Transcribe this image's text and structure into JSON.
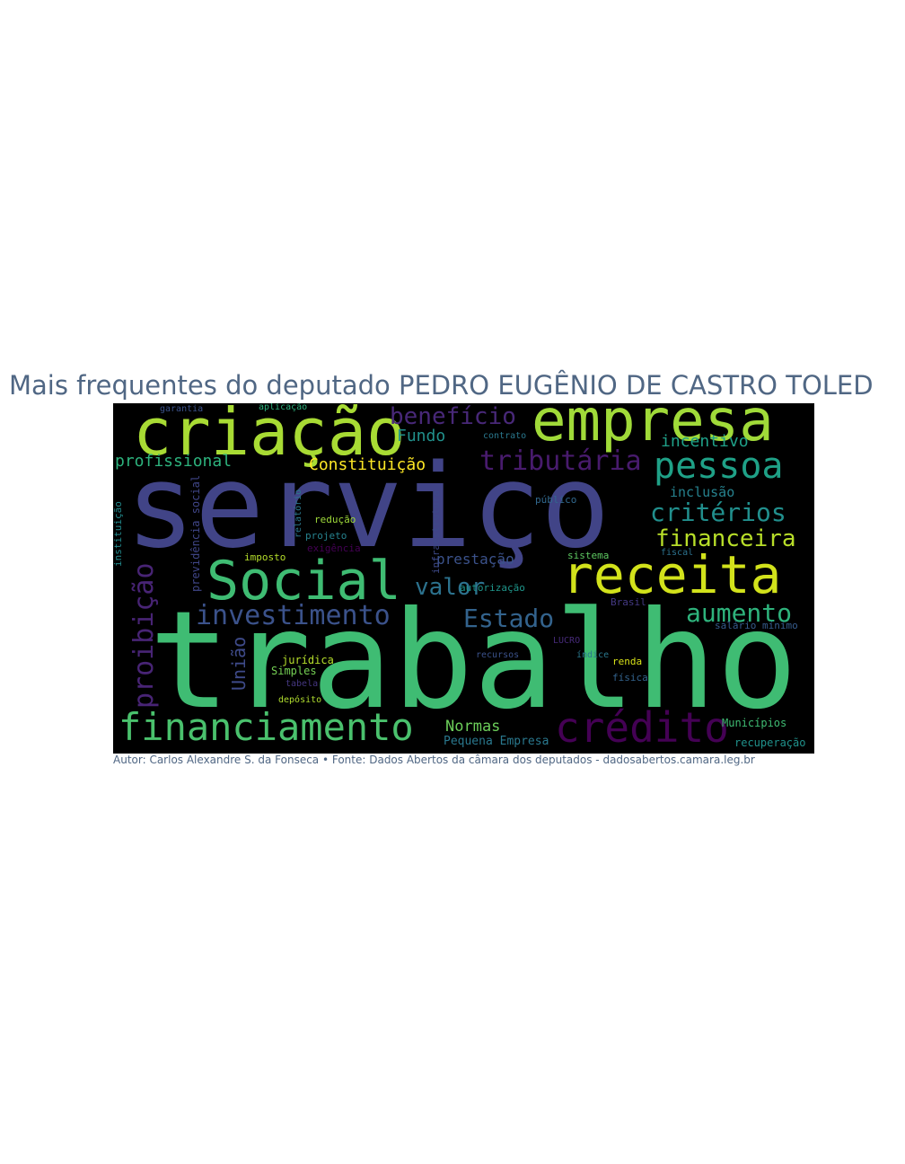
{
  "title": "Mais frequentes do deputado PEDRO EUGÊNIO DE CASTRO TOLED",
  "caption": "Autor: Carlos Alexandre S. da Fonseca • Fonte: Dados Abertos da câmara dos deputados - dadosabertos.camara.leg.br",
  "colors": {
    "title_text": "#506784",
    "cloud_background": "#000000",
    "palette": [
      "#440154",
      "#472f7d",
      "#3b528b",
      "#2c728e",
      "#21918c",
      "#28ae80",
      "#5ec962",
      "#addc30",
      "#fde725"
    ]
  },
  "words": [
    {
      "text": "trabalho",
      "color": "#3fbc73"
    },
    {
      "text": "serviço",
      "color": "#414487"
    },
    {
      "text": "criação",
      "color": "#a8db34"
    },
    {
      "text": "empresa",
      "color": "#a0da39"
    },
    {
      "text": "receita",
      "color": "#d2e21b"
    },
    {
      "text": "Social",
      "color": "#3fbc73"
    },
    {
      "text": "financiamento",
      "color": "#4ac16d"
    },
    {
      "text": "crédito",
      "color": "#440154"
    },
    {
      "text": "pessoa",
      "color": "#1fa187"
    },
    {
      "text": "investimento",
      "color": "#3b528b"
    },
    {
      "text": "tributária",
      "color": "#481b6d"
    },
    {
      "text": "benefício",
      "color": "#482878"
    },
    {
      "text": "critérios",
      "color": "#218f8d"
    },
    {
      "text": "financeira",
      "color": "#b8de29"
    },
    {
      "text": "aumento",
      "color": "#2eb37c"
    },
    {
      "text": "Estado",
      "color": "#33638d"
    },
    {
      "text": "valor",
      "color": "#2c728e"
    },
    {
      "text": "proibição",
      "color": "#482475"
    },
    {
      "text": "profissional",
      "color": "#2db27d"
    },
    {
      "text": "Constituição",
      "color": "#fde725"
    },
    {
      "text": "incentivo",
      "color": "#1fa088"
    },
    {
      "text": "Fundo",
      "color": "#21918c"
    },
    {
      "text": "inclusão",
      "color": "#26828e"
    },
    {
      "text": "Normas",
      "color": "#6ccd5a"
    },
    {
      "text": "prestação",
      "color": "#3b528b"
    },
    {
      "text": "Municípios",
      "color": "#3fbc73"
    },
    {
      "text": "recuperação",
      "color": "#20928c"
    },
    {
      "text": "Pequena Empresa",
      "color": "#2a788e"
    },
    {
      "text": "União",
      "color": "#3e4a89"
    },
    {
      "text": "Simples",
      "color": "#75d054"
    },
    {
      "text": "jurídica",
      "color": "#b5de2b"
    },
    {
      "text": "previdência social",
      "color": "#404688"
    },
    {
      "text": "infraestrutura",
      "color": "#3e4989"
    },
    {
      "text": "instituição",
      "color": "#238a8d"
    },
    {
      "text": "relatório",
      "color": "#2a788e"
    },
    {
      "text": "redução",
      "color": "#9fda3a"
    },
    {
      "text": "projeto",
      "color": "#26828e"
    },
    {
      "text": "exigência",
      "color": "#440154"
    },
    {
      "text": "imposto",
      "color": "#b5de2b"
    },
    {
      "text": "autorização",
      "color": "#1f968b"
    },
    {
      "text": "sistema",
      "color": "#5ec962"
    },
    {
      "text": "fiscal",
      "color": "#2c728e"
    },
    {
      "text": "Brasil",
      "color": "#443983"
    },
    {
      "text": "salário mínimo",
      "color": "#365c8d"
    },
    {
      "text": "renda",
      "color": "#d8e219"
    },
    {
      "text": "física",
      "color": "#33638d"
    },
    {
      "text": "índice",
      "color": "#2a788e"
    },
    {
      "text": "LUCRO",
      "color": "#472a7a"
    },
    {
      "text": "recursos",
      "color": "#3b528b"
    },
    {
      "text": "público",
      "color": "#31688e"
    },
    {
      "text": "depósito",
      "color": "#b0dd2f"
    },
    {
      "text": "tabela",
      "color": "#453781"
    },
    {
      "text": "contrato",
      "color": "#2a788e"
    },
    {
      "text": "aplicação",
      "color": "#2db27d"
    },
    {
      "text": "garantia",
      "color": "#3b528b"
    }
  ]
}
